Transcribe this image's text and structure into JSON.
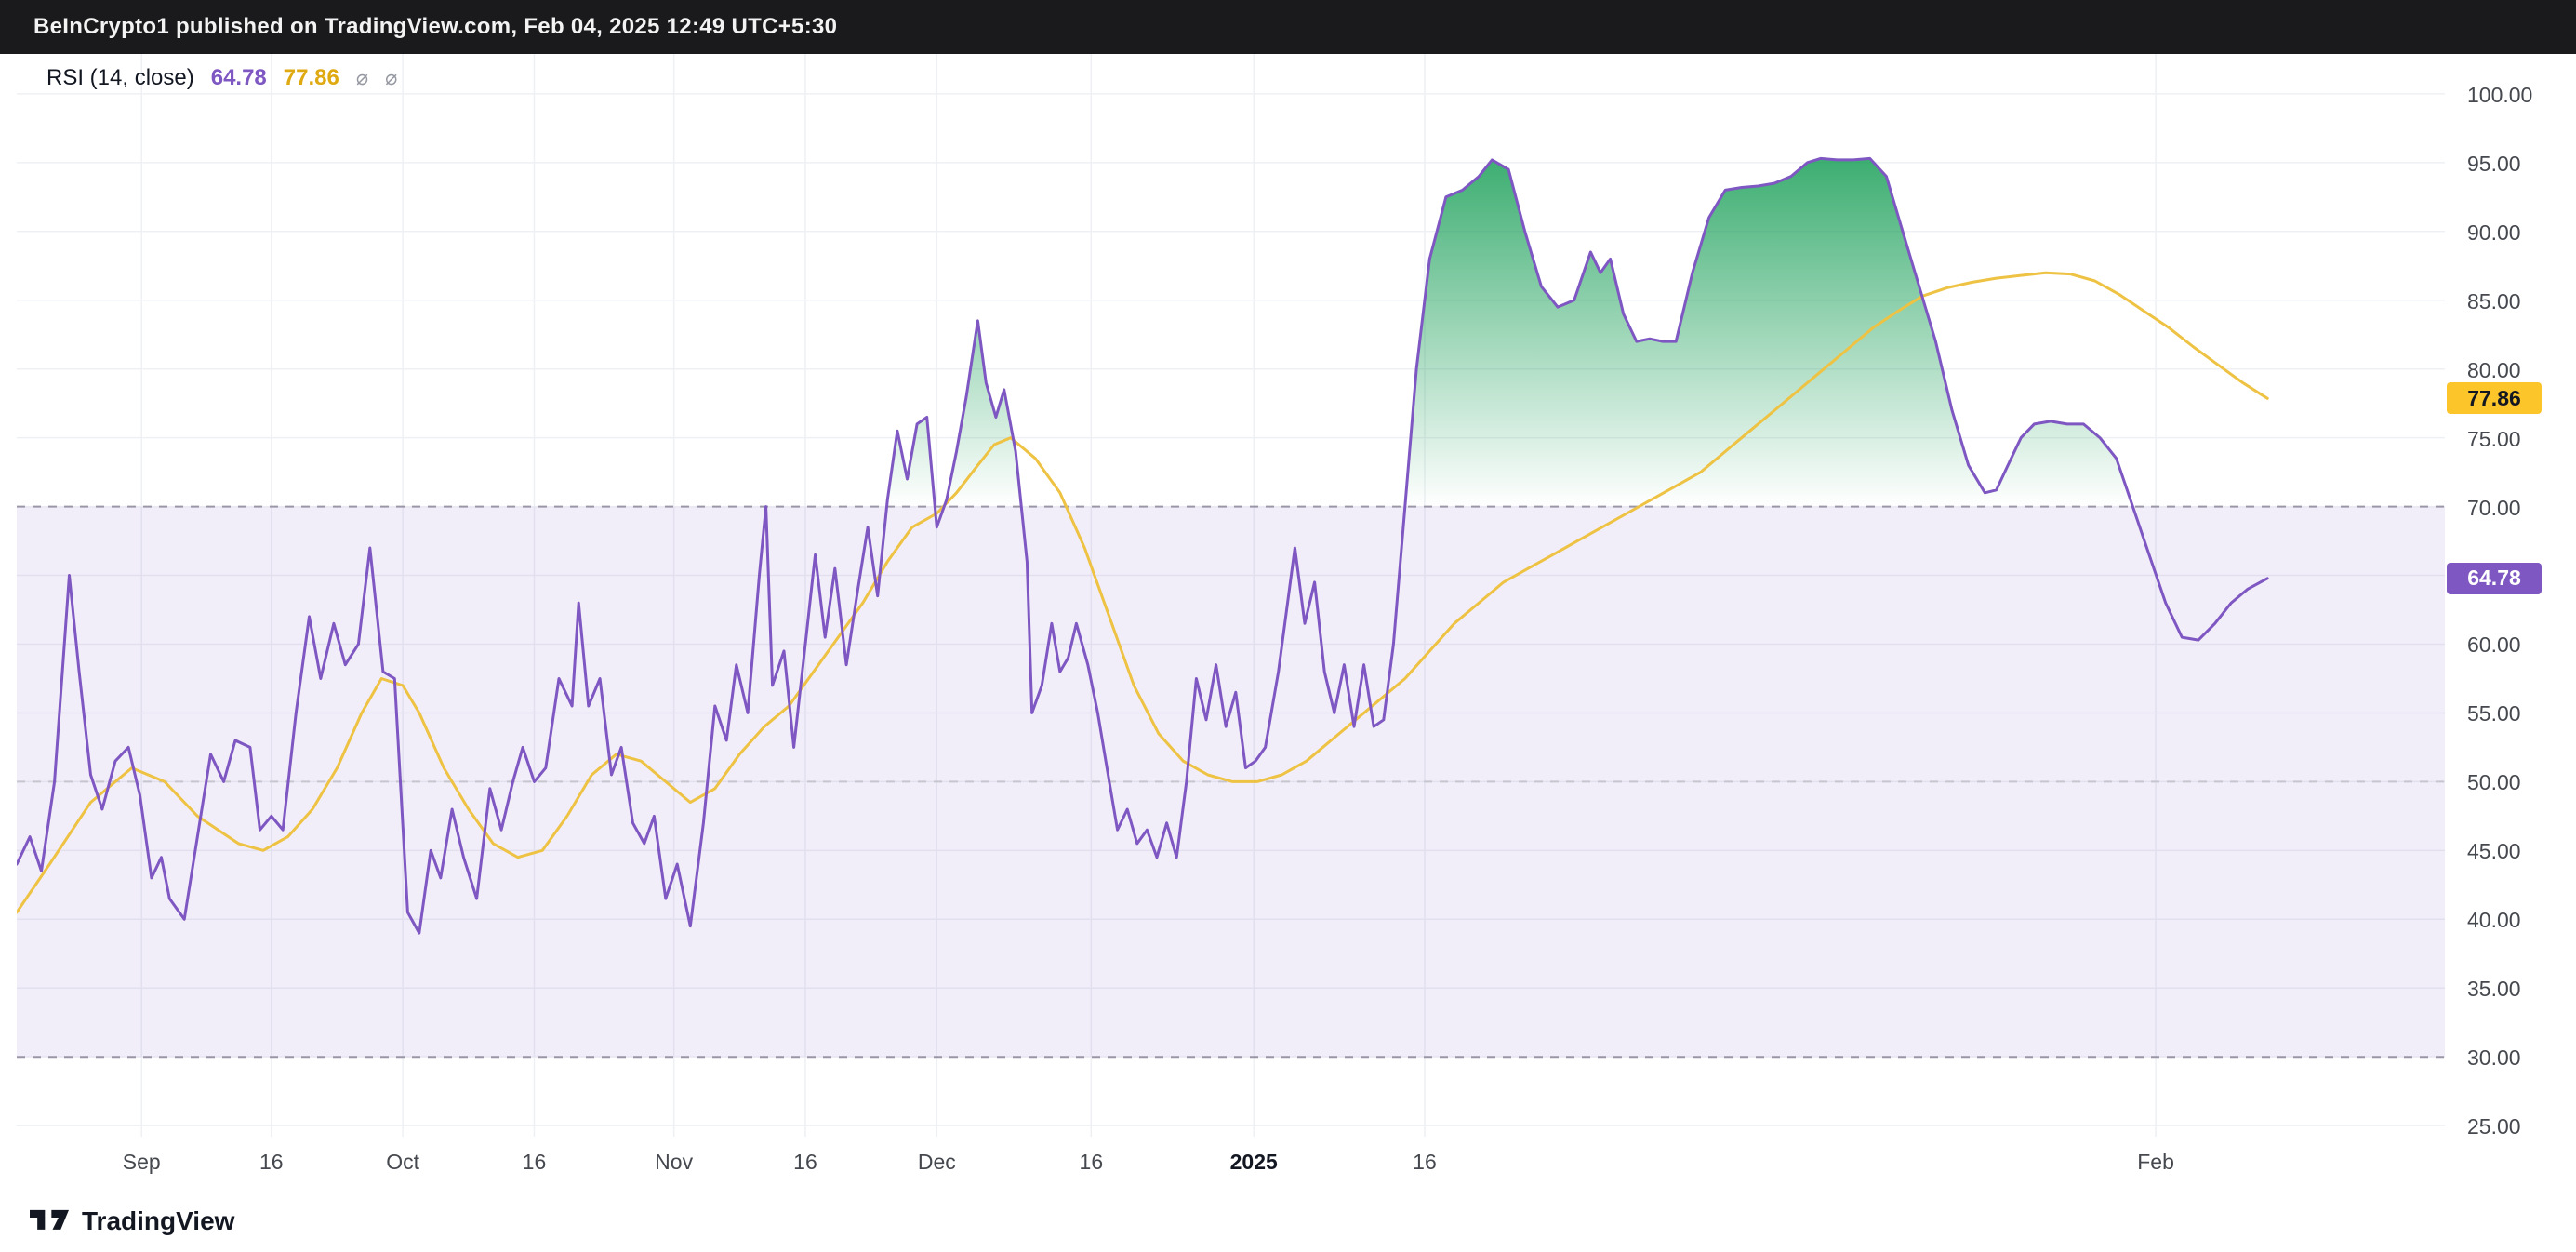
{
  "header": {
    "text": "BeInCrypto1 published on TradingView.com, Feb 04, 2025 12:49 UTC+5:30"
  },
  "legend": {
    "title": "RSI (14, close)",
    "rsi_value": "64.78",
    "ma_value": "77.86",
    "icons": [
      "⌀",
      "⌀"
    ]
  },
  "footer": {
    "brand": "TradingView"
  },
  "colors": {
    "rsi_line": "#7e57c2",
    "ma_line": "#eec243",
    "band_fill": "rgba(126,87,194,0.10)",
    "green_top": "rgba(11,153,77,0.85)",
    "green_bottom": "rgba(11,153,77,0)",
    "grid": "#eef0f4",
    "dashed_main": "#9a96a8",
    "dashed_mid": "#c6c6cf"
  },
  "chart_data": {
    "type": "line",
    "title": "RSI (14, close)",
    "y_axis": {
      "min": 25,
      "max": 100,
      "step": 5,
      "ticks": [
        100,
        95,
        90,
        85,
        80,
        75,
        70,
        65,
        60,
        55,
        50,
        45,
        40,
        35,
        30,
        25
      ]
    },
    "bands": {
      "overbought": 70,
      "midline": 50,
      "oversold": 30
    },
    "grid": true,
    "x_domain": 1478,
    "x_ticks": [
      {
        "label": "Sep",
        "x": 76
      },
      {
        "label": "16",
        "x": 155
      },
      {
        "label": "Oct",
        "x": 235
      },
      {
        "label": "16",
        "x": 315
      },
      {
        "label": "Nov",
        "x": 400
      },
      {
        "label": "16",
        "x": 480
      },
      {
        "label": "Dec",
        "x": 560
      },
      {
        "label": "16",
        "x": 654
      },
      {
        "label": "2025",
        "x": 753,
        "bold": true
      },
      {
        "label": "16",
        "x": 857
      },
      {
        "label": "Feb",
        "x": 1302
      }
    ],
    "last_values": {
      "rsi": 64.78,
      "ma": 77.86
    },
    "series": [
      {
        "name": "RSI",
        "points": [
          [
            0,
            44
          ],
          [
            8,
            46
          ],
          [
            15,
            43.5
          ],
          [
            23,
            50
          ],
          [
            32,
            65
          ],
          [
            38,
            58
          ],
          [
            45,
            50.5
          ],
          [
            52,
            48
          ],
          [
            60,
            51.5
          ],
          [
            68,
            52.5
          ],
          [
            75,
            49
          ],
          [
            82,
            43
          ],
          [
            88,
            44.5
          ],
          [
            93,
            41.5
          ],
          [
            102,
            40
          ],
          [
            110,
            46
          ],
          [
            118,
            52
          ],
          [
            126,
            50
          ],
          [
            133,
            53
          ],
          [
            142,
            52.5
          ],
          [
            148,
            46.5
          ],
          [
            155,
            47.5
          ],
          [
            162,
            46.5
          ],
          [
            170,
            55
          ],
          [
            178,
            62
          ],
          [
            185,
            57.5
          ],
          [
            193,
            61.5
          ],
          [
            200,
            58.5
          ],
          [
            208,
            60
          ],
          [
            215,
            67
          ],
          [
            223,
            58
          ],
          [
            230,
            57.5
          ],
          [
            238,
            40.5
          ],
          [
            245,
            39
          ],
          [
            252,
            45
          ],
          [
            258,
            43
          ],
          [
            265,
            48
          ],
          [
            272,
            44.5
          ],
          [
            280,
            41.5
          ],
          [
            288,
            49.5
          ],
          [
            295,
            46.5
          ],
          [
            302,
            50
          ],
          [
            308,
            52.5
          ],
          [
            315,
            50
          ],
          [
            322,
            51
          ],
          [
            330,
            57.5
          ],
          [
            338,
            55.5
          ],
          [
            342,
            63
          ],
          [
            348,
            55.5
          ],
          [
            355,
            57.5
          ],
          [
            362,
            50.5
          ],
          [
            368,
            52.5
          ],
          [
            375,
            47
          ],
          [
            382,
            45.5
          ],
          [
            388,
            47.5
          ],
          [
            395,
            41.5
          ],
          [
            402,
            44
          ],
          [
            410,
            39.5
          ],
          [
            418,
            47
          ],
          [
            425,
            55.5
          ],
          [
            432,
            53
          ],
          [
            438,
            58.5
          ],
          [
            445,
            55
          ],
          [
            452,
            65
          ],
          [
            456,
            70
          ],
          [
            460,
            57
          ],
          [
            467,
            59.5
          ],
          [
            473,
            52.5
          ],
          [
            480,
            60
          ],
          [
            486,
            66.5
          ],
          [
            492,
            60.5
          ],
          [
            498,
            65.5
          ],
          [
            505,
            58.5
          ],
          [
            512,
            64
          ],
          [
            518,
            68.5
          ],
          [
            524,
            63.5
          ],
          [
            530,
            70.5
          ],
          [
            536,
            75.5
          ],
          [
            542,
            72
          ],
          [
            548,
            76
          ],
          [
            554,
            76.5
          ],
          [
            560,
            68.5
          ],
          [
            566,
            70.5
          ],
          [
            572,
            74
          ],
          [
            578,
            78
          ],
          [
            585,
            83.5
          ],
          [
            590,
            79
          ],
          [
            596,
            76.5
          ],
          [
            601,
            78.5
          ],
          [
            608,
            74
          ],
          [
            615,
            66
          ],
          [
            618,
            55
          ],
          [
            624,
            57
          ],
          [
            630,
            61.5
          ],
          [
            635,
            58
          ],
          [
            640,
            59
          ],
          [
            645,
            61.5
          ],
          [
            652,
            58.5
          ],
          [
            658,
            55
          ],
          [
            665,
            50
          ],
          [
            670,
            46.5
          ],
          [
            676,
            48
          ],
          [
            682,
            45.5
          ],
          [
            688,
            46.5
          ],
          [
            694,
            44.5
          ],
          [
            700,
            47
          ],
          [
            706,
            44.5
          ],
          [
            712,
            50
          ],
          [
            718,
            57.5
          ],
          [
            724,
            54.5
          ],
          [
            730,
            58.5
          ],
          [
            736,
            54
          ],
          [
            742,
            56.5
          ],
          [
            748,
            51
          ],
          [
            754,
            51.5
          ],
          [
            760,
            52.5
          ],
          [
            768,
            58
          ],
          [
            778,
            67
          ],
          [
            784,
            61.5
          ],
          [
            790,
            64.5
          ],
          [
            796,
            58
          ],
          [
            802,
            55
          ],
          [
            808,
            58.5
          ],
          [
            814,
            54
          ],
          [
            820,
            58.5
          ],
          [
            826,
            54
          ],
          [
            832,
            54.5
          ],
          [
            838,
            60
          ],
          [
            845,
            70
          ],
          [
            852,
            80
          ],
          [
            860,
            88
          ],
          [
            870,
            92.5
          ],
          [
            880,
            93
          ],
          [
            890,
            94
          ],
          [
            898,
            95.2
          ],
          [
            908,
            94.5
          ],
          [
            918,
            90
          ],
          [
            928,
            86
          ],
          [
            938,
            84.5
          ],
          [
            948,
            85
          ],
          [
            958,
            88.5
          ],
          [
            964,
            87
          ],
          [
            970,
            88
          ],
          [
            978,
            84
          ],
          [
            986,
            82
          ],
          [
            994,
            82.2
          ],
          [
            1002,
            82
          ],
          [
            1010,
            82
          ],
          [
            1020,
            87
          ],
          [
            1030,
            91
          ],
          [
            1040,
            93
          ],
          [
            1050,
            93.2
          ],
          [
            1060,
            93.3
          ],
          [
            1070,
            93.5
          ],
          [
            1080,
            94
          ],
          [
            1090,
            95
          ],
          [
            1098,
            95.3
          ],
          [
            1108,
            95.2
          ],
          [
            1118,
            95.2
          ],
          [
            1128,
            95.3
          ],
          [
            1138,
            94
          ],
          [
            1148,
            90
          ],
          [
            1158,
            86
          ],
          [
            1168,
            82
          ],
          [
            1178,
            77
          ],
          [
            1188,
            73
          ],
          [
            1198,
            71
          ],
          [
            1205,
            71.2
          ],
          [
            1212,
            73
          ],
          [
            1220,
            75
          ],
          [
            1228,
            76
          ],
          [
            1238,
            76.2
          ],
          [
            1248,
            76
          ],
          [
            1258,
            76
          ],
          [
            1268,
            75
          ],
          [
            1278,
            73.5
          ],
          [
            1288,
            70
          ],
          [
            1298,
            66.5
          ],
          [
            1308,
            63
          ],
          [
            1318,
            60.5
          ],
          [
            1328,
            60.3
          ],
          [
            1338,
            61.5
          ],
          [
            1348,
            63
          ],
          [
            1358,
            64
          ],
          [
            1370,
            64.78
          ]
        ]
      },
      {
        "name": "RSI-based MA",
        "points": [
          [
            0,
            40.5
          ],
          [
            20,
            44
          ],
          [
            45,
            48.5
          ],
          [
            70,
            51
          ],
          [
            90,
            50
          ],
          [
            110,
            47.5
          ],
          [
            135,
            45.5
          ],
          [
            150,
            45
          ],
          [
            165,
            46
          ],
          [
            180,
            48
          ],
          [
            195,
            51
          ],
          [
            210,
            55
          ],
          [
            222,
            57.5
          ],
          [
            235,
            57
          ],
          [
            245,
            55
          ],
          [
            260,
            51
          ],
          [
            275,
            48
          ],
          [
            290,
            45.5
          ],
          [
            305,
            44.5
          ],
          [
            320,
            45
          ],
          [
            335,
            47.5
          ],
          [
            350,
            50.5
          ],
          [
            365,
            52
          ],
          [
            380,
            51.5
          ],
          [
            395,
            50
          ],
          [
            410,
            48.5
          ],
          [
            425,
            49.5
          ],
          [
            440,
            52
          ],
          [
            455,
            54
          ],
          [
            470,
            55.5
          ],
          [
            485,
            58
          ],
          [
            500,
            60.5
          ],
          [
            515,
            63
          ],
          [
            530,
            66
          ],
          [
            545,
            68.5
          ],
          [
            560,
            69.5
          ],
          [
            572,
            71
          ],
          [
            585,
            73
          ],
          [
            595,
            74.5
          ],
          [
            605,
            75
          ],
          [
            620,
            73.5
          ],
          [
            635,
            71
          ],
          [
            650,
            67
          ],
          [
            665,
            62
          ],
          [
            680,
            57
          ],
          [
            695,
            53.5
          ],
          [
            710,
            51.5
          ],
          [
            725,
            50.5
          ],
          [
            740,
            50
          ],
          [
            755,
            50
          ],
          [
            770,
            50.5
          ],
          [
            785,
            51.5
          ],
          [
            800,
            53
          ],
          [
            815,
            54.5
          ],
          [
            830,
            56
          ],
          [
            845,
            57.5
          ],
          [
            860,
            59.5
          ],
          [
            875,
            61.5
          ],
          [
            890,
            63
          ],
          [
            905,
            64.5
          ],
          [
            920,
            65.5
          ],
          [
            935,
            66.5
          ],
          [
            950,
            67.5
          ],
          [
            965,
            68.5
          ],
          [
            980,
            69.5
          ],
          [
            995,
            70.5
          ],
          [
            1010,
            71.5
          ],
          [
            1025,
            72.5
          ],
          [
            1040,
            74
          ],
          [
            1055,
            75.5
          ],
          [
            1070,
            77
          ],
          [
            1085,
            78.5
          ],
          [
            1100,
            80
          ],
          [
            1115,
            81.5
          ],
          [
            1130,
            83
          ],
          [
            1145,
            84.2
          ],
          [
            1160,
            85.3
          ],
          [
            1175,
            85.9
          ],
          [
            1190,
            86.3
          ],
          [
            1205,
            86.6
          ],
          [
            1220,
            86.8
          ],
          [
            1235,
            87
          ],
          [
            1250,
            86.9
          ],
          [
            1265,
            86.4
          ],
          [
            1280,
            85.4
          ],
          [
            1295,
            84.2
          ],
          [
            1310,
            83
          ],
          [
            1325,
            81.6
          ],
          [
            1340,
            80.3
          ],
          [
            1355,
            79
          ],
          [
            1370,
            77.86
          ]
        ]
      }
    ]
  }
}
